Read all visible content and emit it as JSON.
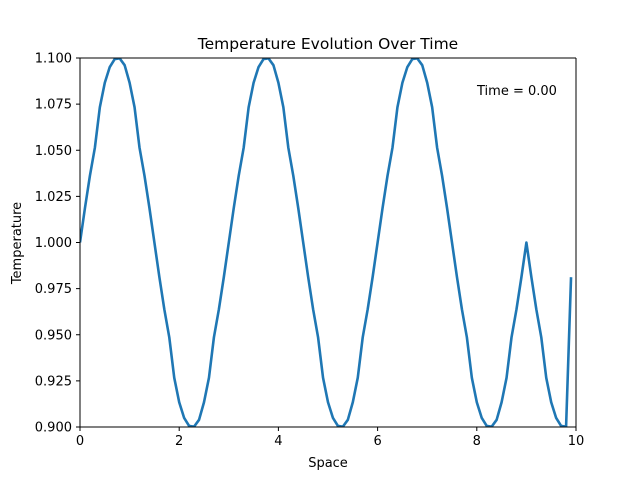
{
  "chart_data": {
    "type": "line",
    "title": "Temperature Evolution Over Time",
    "xlabel": "Space",
    "ylabel": "Temperature",
    "xlim": [
      0,
      10
    ],
    "ylim": [
      0.9,
      1.1
    ],
    "grid": false,
    "x_ticks": [
      "0",
      "2",
      "4",
      "6",
      "8",
      "10"
    ],
    "y_ticks": [
      "0.900",
      "0.925",
      "0.950",
      "0.975",
      "1.000",
      "1.025",
      "1.050",
      "1.075",
      "1.100"
    ],
    "annotation": "Time = 0.00",
    "series": [
      {
        "color": "#1f77b4",
        "x": [
          0.0,
          0.1,
          0.2,
          0.3,
          0.4,
          0.5,
          0.6,
          0.7,
          0.8,
          0.9,
          1.0,
          1.1,
          1.2,
          1.3,
          1.4,
          1.5,
          1.6,
          1.7,
          1.8,
          1.9,
          2.0,
          2.1,
          2.2,
          2.3,
          2.4,
          2.5,
          2.6,
          2.7,
          2.8,
          2.9,
          3.0,
          3.1,
          3.2,
          3.3,
          3.4,
          3.5,
          3.6,
          3.7,
          3.8,
          3.9,
          4.0,
          4.1,
          4.2,
          4.3,
          4.4,
          4.5,
          4.6,
          4.7,
          4.8,
          4.9,
          5.0,
          5.1,
          5.2,
          5.3,
          5.4,
          5.5,
          5.6,
          5.7,
          5.8,
          5.9,
          6.0,
          6.1,
          6.2,
          6.3,
          6.4,
          6.5,
          6.6,
          6.7,
          6.8,
          6.9,
          7.0,
          7.1,
          7.2,
          7.3,
          7.4,
          7.5,
          7.6,
          7.7,
          7.8,
          7.9,
          8.0,
          8.1,
          8.2,
          8.3,
          8.4,
          8.5,
          8.6,
          8.7,
          8.8,
          8.9,
          9.0,
          9.1,
          9.2,
          9.3,
          9.4,
          9.5,
          9.6,
          9.7,
          9.8,
          9.9
        ],
        "y": [
          1.0,
          1.0187,
          1.0362,
          1.0514,
          1.0733,
          1.0866,
          1.0951,
          1.0994,
          1.0998,
          1.0961,
          1.0866,
          1.0733,
          1.0514,
          1.0362,
          1.0187,
          1.0,
          0.9813,
          0.9638,
          0.9486,
          0.9267,
          0.9134,
          0.9049,
          0.9006,
          0.9002,
          0.9039,
          0.9134,
          0.9267,
          0.9486,
          0.9638,
          0.9813,
          1.0,
          1.0187,
          1.0362,
          1.0514,
          1.0733,
          1.0866,
          1.0951,
          1.0994,
          1.0998,
          1.0961,
          1.0866,
          1.0733,
          1.0514,
          1.0362,
          1.0187,
          1.0,
          0.9813,
          0.9638,
          0.9486,
          0.9267,
          0.9134,
          0.9049,
          0.9006,
          0.9002,
          0.9039,
          0.9134,
          0.9267,
          0.9486,
          0.9638,
          0.9813,
          1.0,
          1.0187,
          1.0362,
          1.0514,
          1.0733,
          1.0866,
          1.0951,
          1.0994,
          1.0998,
          1.0961,
          1.0866,
          1.0733,
          1.0514,
          1.0362,
          1.0187,
          1.0,
          0.9813,
          0.9638,
          0.9486,
          0.9267,
          0.9134,
          0.9049,
          0.9006,
          0.9002,
          0.9039,
          0.9134,
          0.9267,
          0.9486,
          0.9638,
          0.9813,
          1.0,
          0.9813,
          0.9638,
          0.9486,
          0.9267,
          0.9134,
          0.9049,
          0.9006,
          0.9002,
          0.9812
        ]
      }
    ]
  }
}
